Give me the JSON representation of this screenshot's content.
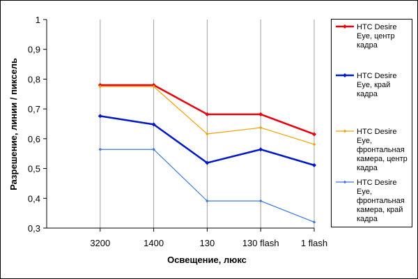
{
  "chart_data": {
    "type": "line",
    "title": "",
    "xlabel": "Освещение, люкс",
    "ylabel": "Разрешение, линии / пиксель",
    "categories": [
      "3200",
      "1400",
      "130",
      "130 flash",
      "1 flash"
    ],
    "ylim": [
      0.3,
      1
    ],
    "yticks": [
      "0,3",
      "0,4",
      "0,5",
      "0,6",
      "0,7",
      "0,8",
      "0,9",
      "1"
    ],
    "grid": "vertical",
    "legend_position": "right",
    "series": [
      {
        "name": "HTC Desire Eye, центр кадра",
        "values": [
          0.78,
          0.78,
          0.682,
          0.682,
          0.615
        ],
        "color": "#e8000b",
        "width": 2.5
      },
      {
        "name": "HTC Desire Eye, край кадра",
        "values": [
          0.676,
          0.648,
          0.519,
          0.564,
          0.511
        ],
        "color": "#0018c8",
        "width": 2.5
      },
      {
        "name": "HTC Desire Eye, фронтальная камера, центр кадра",
        "values": [
          0.775,
          0.775,
          0.616,
          0.637,
          0.581
        ],
        "color": "#f0a000",
        "width": 1.2
      },
      {
        "name": "HTC Desire Eye, фронтальная камера, край кадра",
        "values": [
          0.564,
          0.564,
          0.391,
          0.391,
          0.32
        ],
        "color": "#3a78e0",
        "width": 1.2
      }
    ]
  }
}
